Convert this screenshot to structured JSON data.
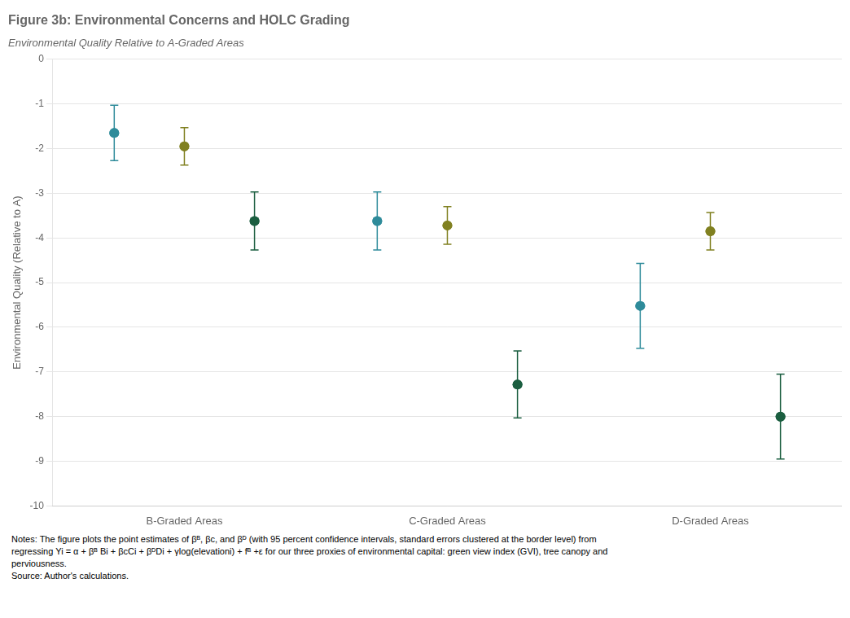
{
  "chart_data": {
    "type": "scatter",
    "marker": "circle",
    "title": "Figure 3b: Environmental Concerns and HOLC Grading",
    "subtitle": "Environmental Quality Relative to A-Graded Areas",
    "ylabel": "Environmental Quality (Relative to A)",
    "notes": [
      "Notes: The figure plots the point estimates of βᴮ, βc, and βᴰ (with 95 percent confidence intervals, standard errors clustered at the border level) from",
      "regressing Yi = α + βᴮ Bi + βcCi + βᴰDi + γlog(elevationi) + fᴮ +ε for our three proxies of environmental capital: green view index (GVI), tree canopy and",
      "perviousness.",
      "Source: Author's calculations."
    ],
    "categories": [
      "B-Graded Areas",
      "C-Graded Areas",
      "D-Graded Areas"
    ],
    "series": [
      {
        "color": "#2E8B9A",
        "values": [
          -1.65,
          -3.62,
          -5.52
        ],
        "yerr_lo": [
          0.62,
          0.65,
          0.95
        ],
        "yerr_hi": [
          0.62,
          0.65,
          0.95
        ]
      },
      {
        "color": "#808020",
        "values": [
          -1.95,
          -3.72,
          -3.85
        ],
        "yerr_lo": [
          0.42,
          0.42,
          0.42
        ],
        "yerr_hi": [
          0.42,
          0.42,
          0.42
        ]
      },
      {
        "color": "#1B5E40",
        "values": [
          -3.62,
          -7.28,
          -8.0
        ],
        "yerr_lo": [
          0.65,
          0.75,
          0.95
        ],
        "yerr_hi": [
          0.65,
          0.75,
          0.95
        ]
      }
    ],
    "ylim": [
      -10,
      0
    ],
    "yticks": [
      0,
      -1,
      -2,
      -3,
      -4,
      -5,
      -6,
      -7,
      -8,
      -9,
      -10
    ],
    "grid": true
  }
}
